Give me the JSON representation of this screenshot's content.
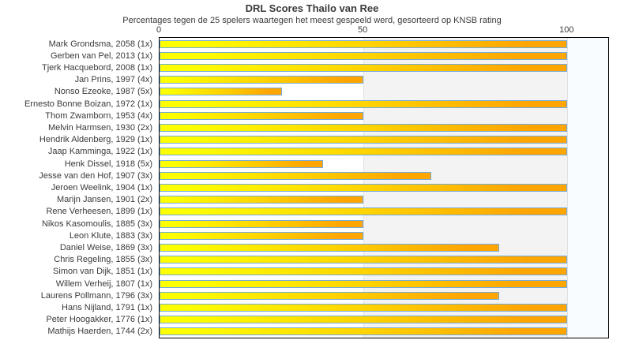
{
  "chart": {
    "title": "DRL Scores Thailo van Ree",
    "subtitle": "Percentages tegen de 25 spelers waartegen het meest gespeeld werd, gesorteerd op KNSB rating"
  },
  "chart_data": {
    "type": "bar",
    "orientation": "horizontal",
    "title": "DRL Scores Thailo van Ree",
    "subtitle": "Percentages tegen de 25 spelers waartegen het meest gespeeld werd, gesorteerd op KNSB rating",
    "categories": [
      "Mark Grondsma, 2058 (1x)",
      "Gerben van Pel, 2013 (1x)",
      "Tjerk Hacquebord, 2008 (1x)",
      "Jan Prins, 1997 (4x)",
      "Nonso Ezeoke, 1987 (5x)",
      "Ernesto Bonne Boizan, 1972 (1x)",
      "Thom Zwamborn, 1953 (4x)",
      "Melvin Harmsen, 1930 (2x)",
      "Hendrik Aldenberg, 1929 (1x)",
      "Jaap Kamminga, 1922 (1x)",
      "Henk Dissel, 1918 (5x)",
      "Jesse van den Hof, 1907 (3x)",
      "Jeroen Weelink, 1904 (1x)",
      "Marijn Jansen, 1901 (2x)",
      "Rene Verheesen, 1899 (1x)",
      "Nikos Kasomoulis, 1885 (3x)",
      "Leon Klute, 1883 (3x)",
      "Daniel Weise, 1869 (3x)",
      "Chris Regeling, 1855 (3x)",
      "Simon van Dijk, 1851 (1x)",
      "Willem Verheij, 1807 (1x)",
      "Laurens Pollmann, 1796 (3x)",
      "Hans Nijland, 1791 (1x)",
      "Peter Hoogakker, 1776 (1x)",
      "Mathijs Haerden, 1744 (2x)"
    ],
    "values": [
      100,
      100,
      100,
      50,
      30,
      100,
      50,
      100,
      100,
      100,
      40,
      66.7,
      100,
      50,
      100,
      50,
      50,
      83.3,
      100,
      100,
      100,
      83.3,
      100,
      100,
      100
    ],
    "xlabel": "",
    "ylabel": "",
    "xlim": [
      0,
      110
    ],
    "xticks": [
      0,
      50,
      100
    ],
    "grid": "vertical-bands",
    "legend": "none",
    "bands": [
      {
        "from": 0,
        "to": 50,
        "color": "#ffffff"
      },
      {
        "from": 50,
        "to": 100,
        "color": "#f3f3f3"
      },
      {
        "from": 100,
        "to": 110,
        "color": "#f9fcfe"
      }
    ],
    "bar_fill_gradient": [
      "#fdff00",
      "#fea502"
    ],
    "bar_border_color": "#74abd8",
    "frame_color": "#000000",
    "text_color": "#3a3a3a"
  }
}
